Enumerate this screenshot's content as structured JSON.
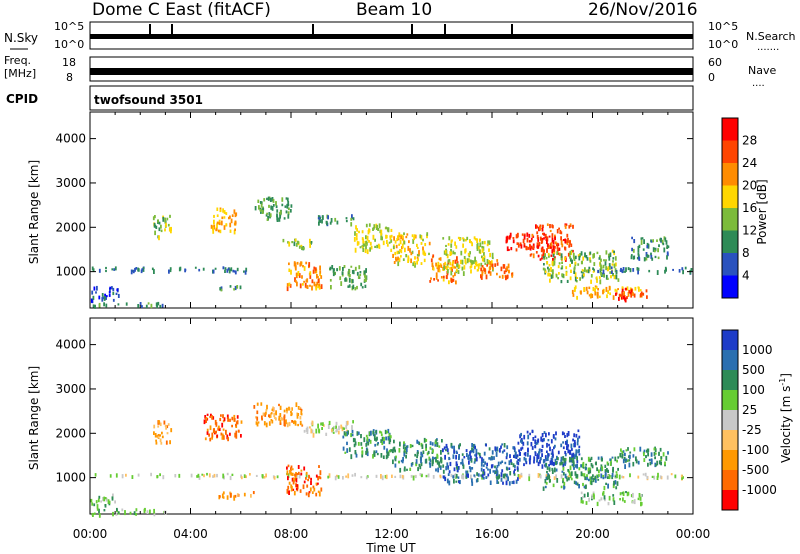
{
  "header": {
    "station": "Dome C East (fitACF)",
    "beam": "Beam 10",
    "date": "26/Nov/2016"
  },
  "strip_panels": {
    "nsky": {
      "label": "N.Sky",
      "y_ticks": [
        "10^5",
        "10^0"
      ],
      "right_label": "N.Search",
      "right_ticks": [
        "10^5",
        "10^0"
      ]
    },
    "freq": {
      "label_line1": "Freq.",
      "label_line2": "[MHz]",
      "y_ticks": [
        "18",
        "8"
      ],
      "right_label": "Nave",
      "right_ticks": [
        "60",
        "0"
      ]
    },
    "cpid": {
      "label": "CPID",
      "program": "twofsound 3501"
    }
  },
  "colors": {
    "power_scale": [
      "#0000ff",
      "#2a52be",
      "#2e8b57",
      "#7cbb3a",
      "#ffd700",
      "#ff8c00",
      "#ff4500",
      "#ff0000"
    ],
    "velocity_scale": [
      "#1e3cc8",
      "#2a6fb0",
      "#2e8b57",
      "#66cc33",
      "#c8c8c8",
      "#ffc060",
      "#ff9900",
      "#ff6a00",
      "#ff0000"
    ]
  },
  "chart_data": [
    {
      "type": "heatmap",
      "name": "power-panel",
      "ylabel": "Slant Range [km]",
      "yticks": [
        1000,
        2000,
        3000,
        4000
      ],
      "ylim": [
        180,
        4600
      ],
      "xlim_hours": [
        0,
        24
      ],
      "colorbar": {
        "label": "Power [dB]",
        "ticks": [
          4,
          8,
          12,
          16,
          20,
          24,
          28
        ],
        "range": [
          0,
          32
        ]
      },
      "regions": [
        {
          "t": [
            0.0,
            6.2
          ],
          "r": [
            1020,
            1120
          ],
          "v": 8
        },
        {
          "t": [
            0.0,
            1.2
          ],
          "r": [
            380,
            680
          ],
          "v": 6
        },
        {
          "t": [
            0.0,
            3.0
          ],
          "r": [
            240,
            320
          ],
          "v": 10
        },
        {
          "t": [
            2.5,
            3.2
          ],
          "r": [
            1800,
            2300
          ],
          "v": 14
        },
        {
          "t": [
            4.8,
            5.8
          ],
          "r": [
            1900,
            2450
          ],
          "v": 20
        },
        {
          "t": [
            5.0,
            6.0
          ],
          "r": [
            600,
            700
          ],
          "v": 10
        },
        {
          "t": [
            6.5,
            8.0
          ],
          "r": [
            2200,
            2700
          ],
          "v": 12
        },
        {
          "t": [
            7.5,
            8.8
          ],
          "r": [
            1550,
            1750
          ],
          "v": 14
        },
        {
          "t": [
            7.8,
            9.2
          ],
          "r": [
            650,
            1250
          ],
          "v": 22
        },
        {
          "t": [
            9.0,
            10.6
          ],
          "r": [
            2100,
            2300
          ],
          "v": 10
        },
        {
          "t": [
            9.5,
            11.0
          ],
          "r": [
            650,
            1150
          ],
          "v": 12
        },
        {
          "t": [
            10.5,
            12.0
          ],
          "r": [
            1500,
            2100
          ],
          "v": 16
        },
        {
          "t": [
            12.0,
            13.5
          ],
          "r": [
            1200,
            1900
          ],
          "v": 18
        },
        {
          "t": [
            13.5,
            14.6
          ],
          "r": [
            800,
            1400
          ],
          "v": 22
        },
        {
          "t": [
            14.0,
            16.0
          ],
          "r": [
            1000,
            1800
          ],
          "v": 16
        },
        {
          "t": [
            15.5,
            16.8
          ],
          "r": [
            900,
            1300
          ],
          "v": 24
        },
        {
          "t": [
            16.5,
            18.2
          ],
          "r": [
            1500,
            1900
          ],
          "v": 28
        },
        {
          "t": [
            17.5,
            19.2
          ],
          "r": [
            1300,
            2100
          ],
          "v": 26
        },
        {
          "t": [
            18.0,
            21.0
          ],
          "r": [
            800,
            1500
          ],
          "v": 14
        },
        {
          "t": [
            19.0,
            22.0
          ],
          "r": [
            450,
            700
          ],
          "v": 20
        },
        {
          "t": [
            20.8,
            22.2
          ],
          "r": [
            400,
            650
          ],
          "v": 28
        },
        {
          "t": [
            20.0,
            24.0
          ],
          "r": [
            1020,
            1120
          ],
          "v": 8
        },
        {
          "t": [
            21.5,
            23.0
          ],
          "r": [
            1300,
            1800
          ],
          "v": 10
        }
      ]
    },
    {
      "type": "heatmap",
      "name": "velocity-panel",
      "ylabel": "Slant Range [km]",
      "yticks": [
        1000,
        2000,
        3000,
        4000
      ],
      "ylim": [
        180,
        4600
      ],
      "xlim_hours": [
        0,
        24
      ],
      "colorbar": {
        "label": "Velocity [m s^-1]",
        "ticks": [
          "1000",
          "500",
          "100",
          "25",
          "-25",
          "-100",
          "-500",
          "-1000"
        ]
      },
      "regions": [
        {
          "t": [
            0.0,
            24.0
          ],
          "r": [
            1030,
            1110
          ],
          "v": 4
        },
        {
          "t": [
            0.0,
            1.0
          ],
          "r": [
            380,
            650
          ],
          "v": 3
        },
        {
          "t": [
            0.0,
            3.0
          ],
          "r": [
            200,
            320
          ],
          "v": 3
        },
        {
          "t": [
            2.5,
            3.2
          ],
          "r": [
            1800,
            2300
          ],
          "v": 6
        },
        {
          "t": [
            4.5,
            6.0
          ],
          "r": [
            1900,
            2450
          ],
          "v": 7
        },
        {
          "t": [
            5.0,
            6.5
          ],
          "r": [
            550,
            700
          ],
          "v": 6
        },
        {
          "t": [
            6.5,
            8.5
          ],
          "r": [
            2200,
            2700
          ],
          "v": 6
        },
        {
          "t": [
            7.8,
            9.2
          ],
          "r": [
            650,
            1300
          ],
          "v": 7
        },
        {
          "t": [
            8.5,
            10.5
          ],
          "r": [
            2000,
            2300
          ],
          "v": 4
        },
        {
          "t": [
            10.0,
            12.0
          ],
          "r": [
            1500,
            2100
          ],
          "v": 2
        },
        {
          "t": [
            12.0,
            14.0
          ],
          "r": [
            1200,
            1900
          ],
          "v": 2
        },
        {
          "t": [
            14.0,
            17.0
          ],
          "r": [
            900,
            1800
          ],
          "v": 1
        },
        {
          "t": [
            17.0,
            19.5
          ],
          "r": [
            1300,
            2100
          ],
          "v": 0
        },
        {
          "t": [
            18.0,
            21.0
          ],
          "r": [
            800,
            1500
          ],
          "v": 2
        },
        {
          "t": [
            19.5,
            22.0
          ],
          "r": [
            450,
            700
          ],
          "v": 3
        },
        {
          "t": [
            21.0,
            23.0
          ],
          "r": [
            1300,
            1700
          ],
          "v": 2
        }
      ]
    }
  ],
  "time_axis": {
    "ticks": [
      "00:00",
      "04:00",
      "08:00",
      "12:00",
      "16:00",
      "20:00",
      "00:00"
    ],
    "label": "Time UT"
  }
}
